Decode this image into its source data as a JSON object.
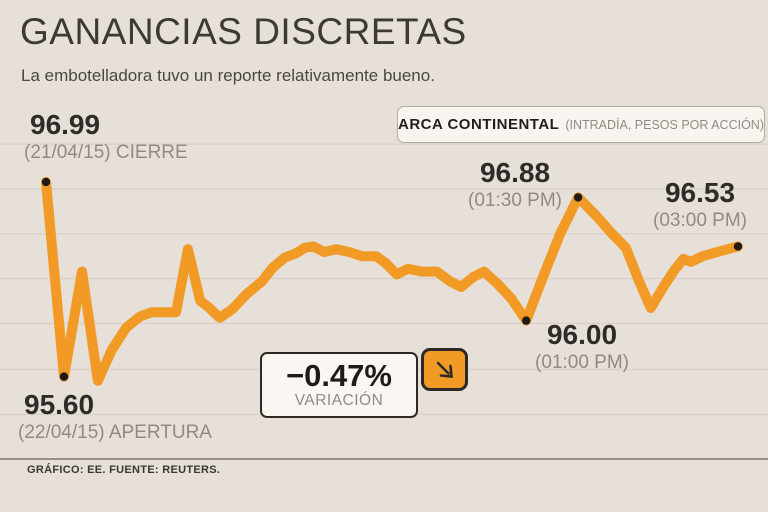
{
  "header": {
    "title": "GANANCIAS DISCRETAS",
    "subtitle": "La embotelladora tuvo un reporte relativamente bueno."
  },
  "legend": {
    "name": "ARCA CONTINENTAL",
    "detail": "(INTRADÍA, PESOS POR ACCIÓN)"
  },
  "chart_data": {
    "type": "line",
    "title": "ARCA CONTINENTAL (INTRADÍA, PESOS POR ACCIÓN)",
    "ylabel": "pesos por acción",
    "ylim": [
      95.3,
      97.3
    ],
    "grid": "horizontal",
    "legend_position": "top-right",
    "line_color": "#f19a26",
    "marker_color": "#1d1a17",
    "gridline_prices": [
      97.26,
      96.94,
      96.62,
      96.3,
      95.98,
      95.65,
      95.33
    ],
    "series": [
      {
        "name": "ARCA CONTINENTAL",
        "points": [
          [
            0.0,
            96.99
          ],
          [
            0.026,
            95.6
          ],
          [
            0.052,
            96.35
          ],
          [
            0.075,
            95.57
          ],
          [
            0.095,
            95.79
          ],
          [
            0.116,
            95.95
          ],
          [
            0.136,
            96.03
          ],
          [
            0.153,
            96.06
          ],
          [
            0.188,
            96.06
          ],
          [
            0.205,
            96.51
          ],
          [
            0.223,
            96.14
          ],
          [
            0.234,
            96.1
          ],
          [
            0.251,
            96.02
          ],
          [
            0.269,
            96.08
          ],
          [
            0.29,
            96.19
          ],
          [
            0.312,
            96.28
          ],
          [
            0.328,
            96.38
          ],
          [
            0.345,
            96.45
          ],
          [
            0.361,
            96.48
          ],
          [
            0.374,
            96.52
          ],
          [
            0.386,
            96.53
          ],
          [
            0.402,
            96.49
          ],
          [
            0.419,
            96.51
          ],
          [
            0.438,
            96.49
          ],
          [
            0.457,
            96.46
          ],
          [
            0.477,
            96.46
          ],
          [
            0.491,
            96.41
          ],
          [
            0.507,
            96.33
          ],
          [
            0.523,
            96.37
          ],
          [
            0.543,
            96.35
          ],
          [
            0.565,
            96.35
          ],
          [
            0.584,
            96.28
          ],
          [
            0.6,
            96.24
          ],
          [
            0.617,
            96.31
          ],
          [
            0.633,
            96.35
          ],
          [
            0.653,
            96.26
          ],
          [
            0.672,
            96.16
          ],
          [
            0.694,
            96.0
          ],
          [
            0.718,
            96.31
          ],
          [
            0.743,
            96.62
          ],
          [
            0.769,
            96.88
          ],
          [
            0.795,
            96.75
          ],
          [
            0.818,
            96.62
          ],
          [
            0.838,
            96.52
          ],
          [
            0.858,
            96.27
          ],
          [
            0.874,
            96.09
          ],
          [
            0.892,
            96.24
          ],
          [
            0.908,
            96.36
          ],
          [
            0.921,
            96.44
          ],
          [
            0.932,
            96.42
          ],
          [
            0.949,
            96.46
          ],
          [
            0.97,
            96.49
          ],
          [
            1.0,
            96.53
          ]
        ]
      }
    ],
    "markers": [
      [
        0.0,
        96.99
      ],
      [
        0.026,
        95.6
      ],
      [
        0.694,
        96.0
      ],
      [
        0.769,
        96.88
      ],
      [
        1.0,
        96.53
      ]
    ],
    "annotations": [
      {
        "value": "96.99",
        "label": "(21/04/15) CIERRE"
      },
      {
        "value": "95.60",
        "label": "(22/04/15) APERTURA"
      },
      {
        "value": "96.88",
        "label": "(01:30 PM)"
      },
      {
        "value": "96.00",
        "label": "(01:00 PM)"
      },
      {
        "value": "96.53",
        "label": "(03:00 PM)"
      }
    ]
  },
  "variation": {
    "value": "−0.47%",
    "label": "VARIACIÓN",
    "direction_icon": "down-right-arrow"
  },
  "footer": {
    "credit": "GRÁFICO: EE. FUENTE: REUTERS."
  },
  "colors": {
    "background": "#e7e0d8",
    "accent_orange": "#f19a26",
    "text_dark": "#2e2b28",
    "text_gray": "#8f8b84"
  }
}
